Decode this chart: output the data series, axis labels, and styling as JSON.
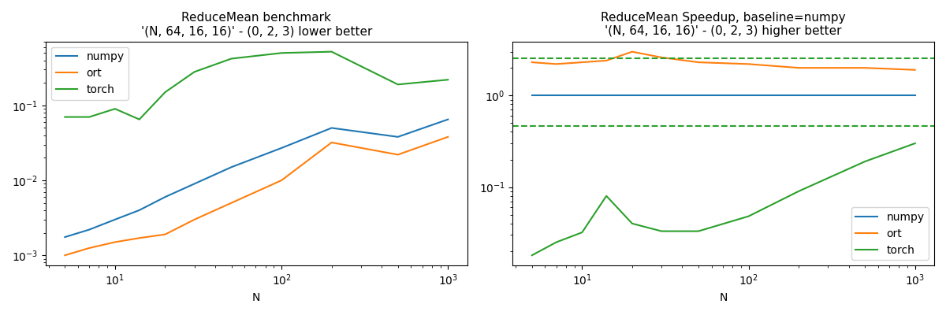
{
  "title1": "ReduceMean benchmark\n'(N, 64, 16, 16)' - (0, 2, 3) lower better",
  "title2": "ReduceMean Speedup, baseline=numpy\n'(N, 64, 16, 16)' - (0, 2, 3) higher better",
  "xlabel": "N",
  "N": [
    5,
    7,
    10,
    14,
    20,
    30,
    50,
    100,
    200,
    500,
    1000
  ],
  "numpy_times": [
    0.00175,
    0.0022,
    0.003,
    0.004,
    0.006,
    0.009,
    0.015,
    0.027,
    0.05,
    0.038,
    0.065
  ],
  "ort_times": [
    0.001,
    0.00125,
    0.0015,
    0.0017,
    0.0019,
    0.003,
    0.005,
    0.01,
    0.032,
    0.022,
    0.038
  ],
  "torch_times": [
    0.07,
    0.07,
    0.09,
    0.065,
    0.15,
    0.28,
    0.42,
    0.5,
    0.52,
    0.19,
    0.22
  ],
  "numpy_speedup": [
    1.0,
    1.0,
    1.0,
    1.0,
    1.0,
    1.0,
    1.0,
    1.0,
    1.0,
    1.0,
    1.0
  ],
  "ort_speedup": [
    2.3,
    2.2,
    2.3,
    2.4,
    3.0,
    2.6,
    2.3,
    2.2,
    2.0,
    2.0,
    1.9
  ],
  "torch_speedup": [
    0.018,
    0.025,
    0.032,
    0.08,
    0.04,
    0.033,
    0.033,
    0.048,
    0.09,
    0.19,
    0.3
  ],
  "torch_median_speedup_high": 2.55,
  "torch_median_speedup_low": 0.46,
  "color_numpy": "#1f77b4",
  "color_ort": "#ff7f0e",
  "color_torch": "#2ca02c",
  "legend_labels": [
    "numpy",
    "ort",
    "torch"
  ]
}
